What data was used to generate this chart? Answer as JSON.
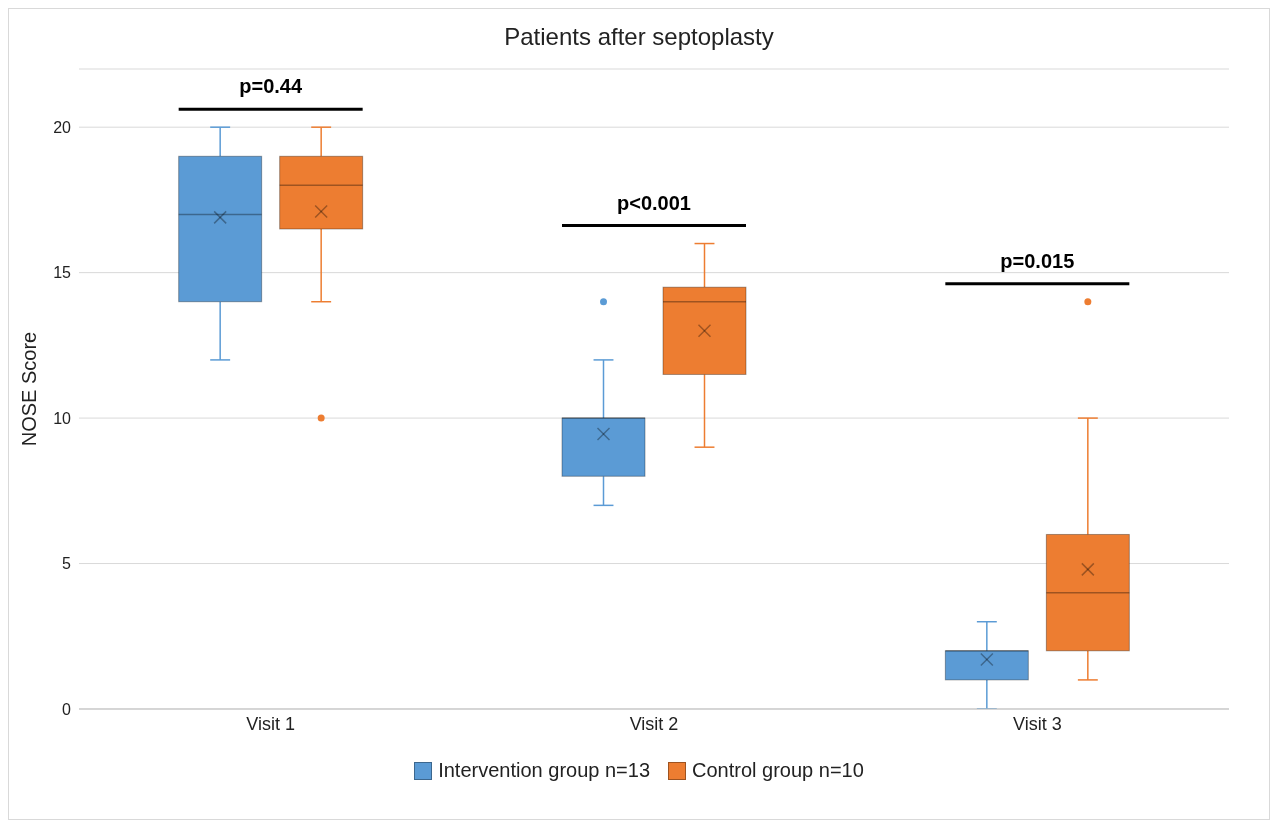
{
  "chart_data": {
    "type": "box",
    "title": "Patients after septoplasty",
    "ylabel": "NOSE Score",
    "categories": [
      "Visit 1",
      "Visit 2",
      "Visit 3"
    ],
    "series": [
      {
        "name": "Intervention group n=13",
        "color": "#5b9bd5",
        "boxes": [
          {
            "low": 12,
            "q1": 14,
            "median": 17,
            "q3": 19,
            "high": 20,
            "mean": 16.9
          },
          {
            "low": 7,
            "q1": 8,
            "median": 10,
            "q3": 10,
            "high": 12,
            "mean": 9.45,
            "outliers": [
              14
            ]
          },
          {
            "low": 0,
            "q1": 1,
            "median": 2,
            "q3": 2,
            "high": 3,
            "mean": 1.7
          }
        ]
      },
      {
        "name": "Control group n=10",
        "color": "#ed7d31",
        "boxes": [
          {
            "low": 14,
            "q1": 16.5,
            "median": 18,
            "q3": 19,
            "high": 20,
            "mean": 17.1,
            "outliers": [
              10
            ]
          },
          {
            "low": 9,
            "q1": 11.5,
            "median": 14,
            "q3": 14.5,
            "high": 16,
            "mean": 13
          },
          {
            "low": 1,
            "q1": 2,
            "median": 4,
            "q3": 6,
            "high": 10,
            "mean": 4.8,
            "outliers": [
              14
            ]
          }
        ]
      }
    ],
    "ylim": [
      0,
      22
    ],
    "yticks": [
      0,
      5,
      10,
      15,
      20
    ],
    "grid": "y",
    "legend": "bottom",
    "annotations": [
      "p=0.44",
      "p<0.001",
      "p=0.015"
    ]
  }
}
